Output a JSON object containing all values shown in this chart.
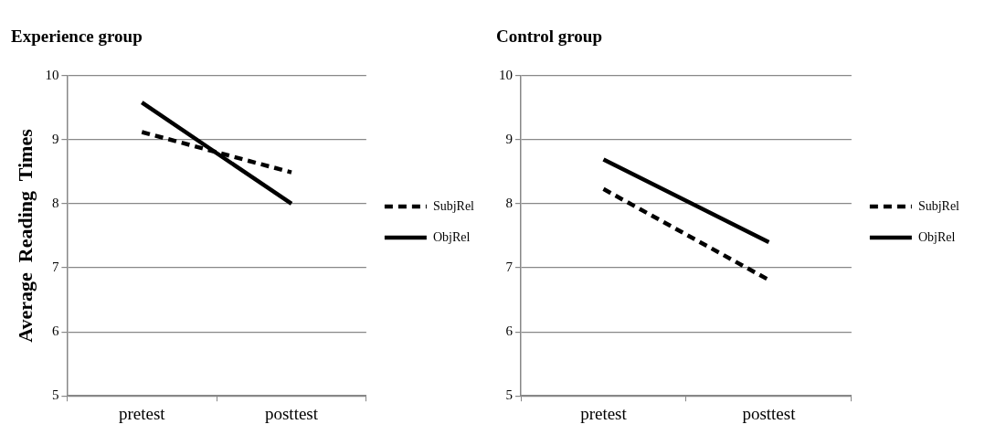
{
  "chart_data": [
    {
      "type": "line",
      "title": "Experience group",
      "ylabel": "Average  Reading  Times",
      "categories": [
        "pretest",
        "posttest"
      ],
      "series": [
        {
          "name": "SubjRel",
          "color": "#000000",
          "line_style": "dashed",
          "values": [
            9.12,
            8.49
          ]
        },
        {
          "name": "ObjRel",
          "color": "#000000",
          "line_style": "solid",
          "values": [
            9.58,
            8.0
          ]
        }
      ],
      "ylim": [
        5,
        10
      ],
      "yticks": [
        5,
        6,
        7,
        8,
        9,
        10
      ],
      "grid": "y",
      "legend": "right",
      "marker": "none"
    },
    {
      "type": "line",
      "title": "Control group",
      "categories": [
        "pretest",
        "posttest"
      ],
      "series": [
        {
          "name": "SubjRel",
          "color": "#000000",
          "line_style": "dashed",
          "values": [
            8.23,
            6.81
          ]
        },
        {
          "name": "ObjRel",
          "color": "#000000",
          "line_style": "solid",
          "values": [
            8.69,
            7.4
          ]
        }
      ],
      "ylim": [
        5,
        10
      ],
      "yticks": [
        5,
        6,
        7,
        8,
        9,
        10
      ],
      "grid": "y",
      "legend": "right",
      "marker": "none"
    }
  ]
}
